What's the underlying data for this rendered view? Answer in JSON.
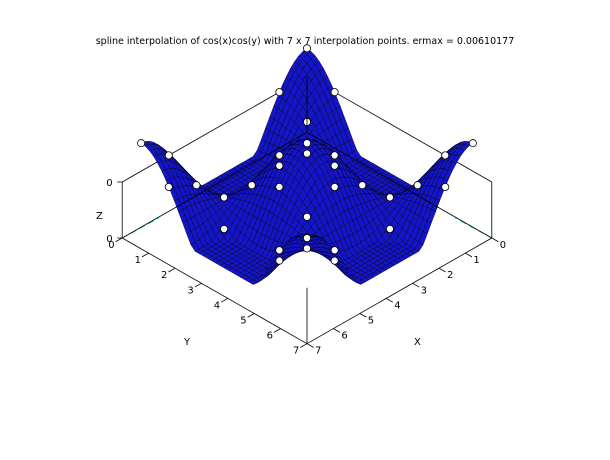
{
  "chart_data": {
    "type": "surface3d",
    "title": "spline interpolation of cos(x)cos(y) with 7 x 7 interpolation points. ermax = 0.00610177",
    "function": "cos(x)cos(y)",
    "grid_size": [
      7,
      7
    ],
    "x_axis": {
      "label": "X",
      "ticks": [
        "0",
        "1",
        "2",
        "3",
        "4",
        "5",
        "6",
        "7"
      ],
      "range": [
        0,
        7
      ]
    },
    "y_axis": {
      "label": "Y",
      "ticks": [
        "0",
        "1",
        "2",
        "3",
        "4",
        "5",
        "6",
        "7"
      ],
      "range": [
        0,
        7
      ]
    },
    "z_axis": {
      "label": "Z",
      "ticks": [
        "0",
        "0"
      ]
    },
    "interpolation_points": {
      "x": [
        0,
        1.0472,
        2.0944,
        3.1416,
        4.1888,
        5.236,
        6.2832
      ],
      "y": [
        0,
        1.0472,
        2.0944,
        3.1416,
        4.1888,
        5.236,
        6.2832
      ]
    },
    "ermax": 0.00610177,
    "colors": {
      "surface": "#1414c8",
      "mesh": "#000000",
      "axes": "#000000",
      "hidden_axis": "#00d8d8",
      "points": "#ffffff"
    }
  }
}
